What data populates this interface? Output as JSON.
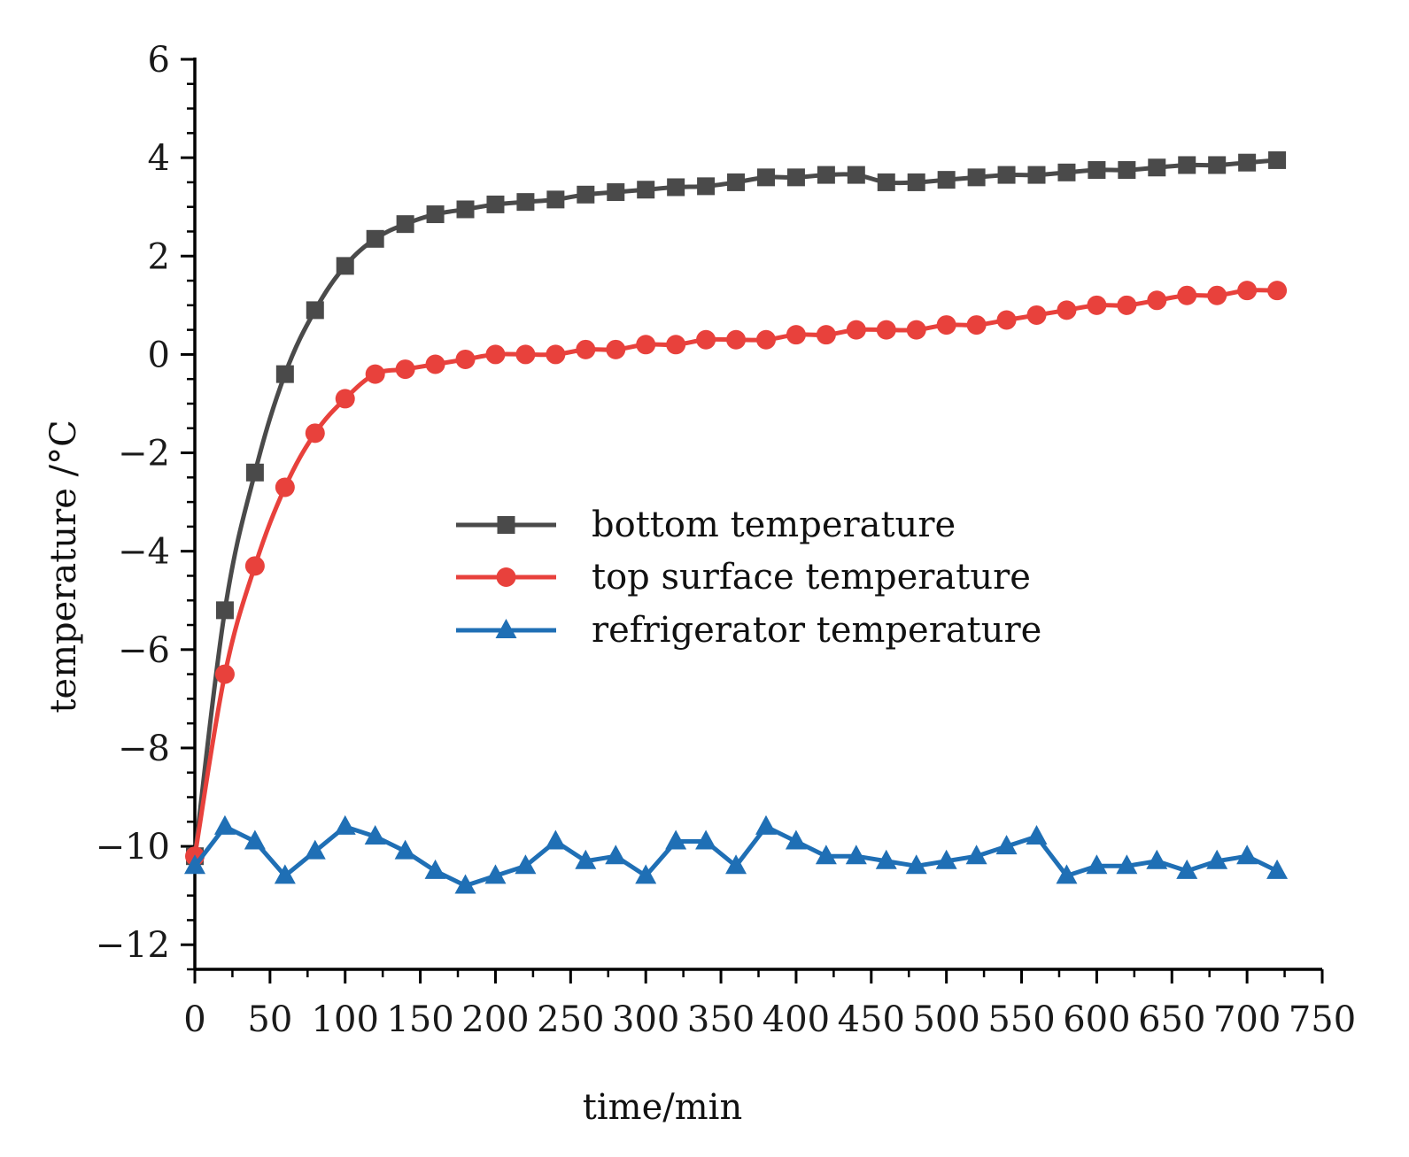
{
  "chart_data": {
    "type": "line",
    "title": "",
    "xlabel": "time/min",
    "ylabel": "temperature /°C",
    "xlim": [
      0,
      750
    ],
    "ylim": [
      -12.5,
      6
    ],
    "x_ticks": [
      0,
      50,
      100,
      150,
      200,
      250,
      300,
      350,
      400,
      450,
      500,
      550,
      600,
      650,
      700,
      750
    ],
    "y_ticks": [
      -12,
      -10,
      -8,
      -6,
      -4,
      -2,
      0,
      2,
      4,
      6
    ],
    "y_tick_labels": [
      "−12",
      "−10",
      "−8",
      "−6",
      "−4",
      "−2",
      "0",
      "2",
      "4",
      "6"
    ],
    "grid": false,
    "legend_position": "center",
    "x": [
      0,
      20,
      40,
      60,
      80,
      100,
      120,
      140,
      160,
      180,
      200,
      220,
      240,
      260,
      280,
      300,
      320,
      340,
      360,
      380,
      400,
      420,
      440,
      460,
      480,
      500,
      520,
      540,
      560,
      580,
      600,
      620,
      640,
      660,
      680,
      700,
      720
    ],
    "series": [
      {
        "name": "bottom temperature",
        "color": "#4a4a4a",
        "marker": "square",
        "values": [
          -10.2,
          -5.2,
          -2.4,
          -0.4,
          0.9,
          1.8,
          2.35,
          2.65,
          2.85,
          2.95,
          3.05,
          3.1,
          3.15,
          3.25,
          3.3,
          3.35,
          3.4,
          3.42,
          3.5,
          3.6,
          3.6,
          3.65,
          3.65,
          3.5,
          3.5,
          3.55,
          3.6,
          3.65,
          3.65,
          3.7,
          3.75,
          3.75,
          3.8,
          3.85,
          3.85,
          3.9,
          3.95
        ]
      },
      {
        "name": "top surface temperature",
        "color": "#e8413c",
        "marker": "circle",
        "values": [
          -10.2,
          -6.5,
          -4.3,
          -2.7,
          -1.6,
          -0.9,
          -0.4,
          -0.3,
          -0.2,
          -0.1,
          0.0,
          0.0,
          0.0,
          0.1,
          0.1,
          0.2,
          0.2,
          0.3,
          0.3,
          0.3,
          0.4,
          0.4,
          0.5,
          0.5,
          0.5,
          0.6,
          0.6,
          0.7,
          0.8,
          0.9,
          1.0,
          1.0,
          1.1,
          1.2,
          1.2,
          1.3,
          1.3
        ]
      },
      {
        "name": "refrigerator temperature",
        "color": "#1f6fb5",
        "marker": "triangle",
        "values": [
          -10.4,
          -9.6,
          -9.9,
          -10.6,
          -10.1,
          -9.6,
          -9.8,
          -10.1,
          -10.5,
          -10.8,
          -10.6,
          -10.4,
          -9.9,
          -10.3,
          -10.2,
          -10.6,
          -9.9,
          -9.9,
          -10.4,
          -9.6,
          -9.9,
          -10.2,
          -10.2,
          -10.3,
          -10.4,
          -10.3,
          -10.2,
          -10.0,
          -9.8,
          -10.6,
          -10.4,
          -10.4,
          -10.3,
          -10.5,
          -10.3,
          -10.2,
          -10.5
        ]
      }
    ]
  }
}
